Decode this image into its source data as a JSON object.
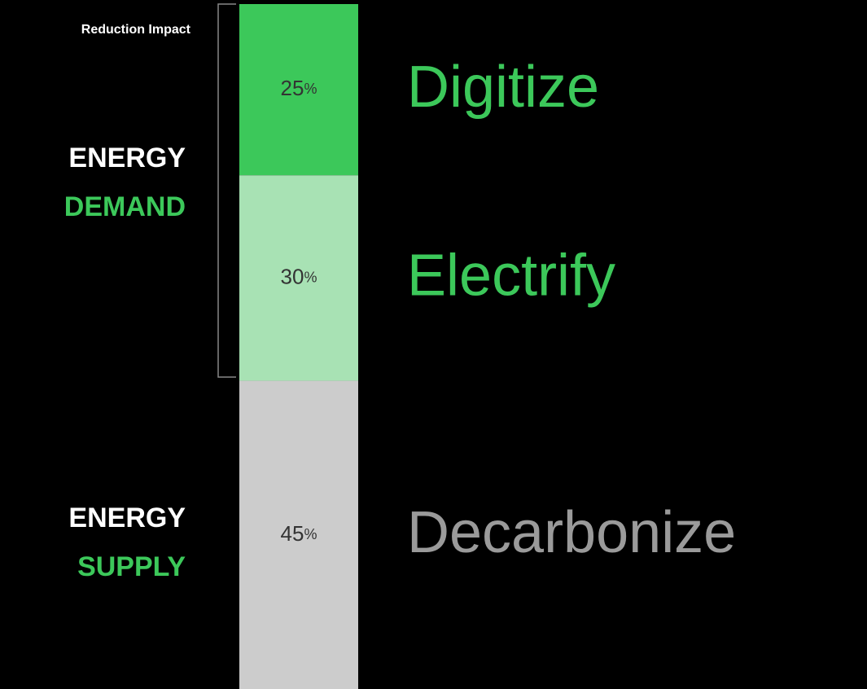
{
  "chart_data": {
    "type": "stacked_bar",
    "annotation": "Reduction Impact",
    "groups": [
      {
        "line1": "ENERGY",
        "line2": "DEMAND"
      },
      {
        "line1": "ENERGY",
        "line2": "SUPPLY"
      }
    ],
    "ylim": [
      0,
      100
    ],
    "series": [
      {
        "name": "Digitize",
        "color": "#3cc85a",
        "name_color": "#3cc85a",
        "values": [
          25
        ],
        "value_labels": [
          "25%"
        ]
      },
      {
        "name": "Electrify",
        "color": "#a8e2b4",
        "name_color": "#3cc85a",
        "values": [
          30
        ],
        "value_labels": [
          "30%"
        ]
      },
      {
        "name": "Decarbonize",
        "color": "#cccccc",
        "name_color": "#9a9a9a",
        "values": [
          45
        ],
        "value_labels": [
          "45%"
        ]
      }
    ]
  }
}
